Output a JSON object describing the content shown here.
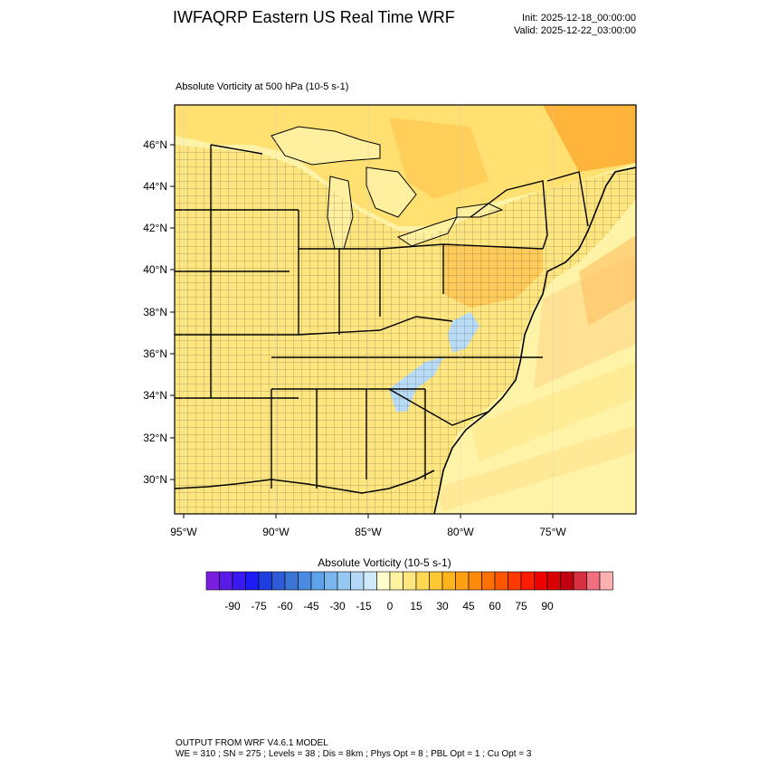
{
  "header": {
    "title": "IWFAQRP Eastern US Real Time WRF",
    "init": "Init: 2025-12-18_00:00:00",
    "valid": "Valid: 2025-12-22_03:00:00"
  },
  "plot": {
    "subtitle": "Absolute Vorticity at 500 hPa   (10-5 s-1)",
    "lat_labels": [
      "46°N",
      "44°N",
      "42°N",
      "40°N",
      "38°N",
      "36°N",
      "34°N",
      "32°N",
      "30°N"
    ],
    "lon_labels": [
      "95°W",
      "90°W",
      "85°W",
      "80°W",
      "75°W"
    ]
  },
  "colorbar": {
    "title": "Absolute Vorticity  (10-5 s-1)",
    "labels": [
      "-90",
      "-75",
      "-60",
      "-45",
      "-30",
      "-15",
      "0",
      "15",
      "30",
      "45",
      "60",
      "75",
      "90"
    ],
    "colors": [
      "#7a1fe0",
      "#5a1ae8",
      "#3a18f0",
      "#1c1cf6",
      "#1f3ee0",
      "#2f5bd8",
      "#3b76d6",
      "#4a8be0",
      "#5ea2ea",
      "#79b6ee",
      "#95c8f2",
      "#b3d9f6",
      "#d0e9fa",
      "#ffffcc",
      "#fff2a0",
      "#ffe680",
      "#ffd855",
      "#ffc832",
      "#ffb41e",
      "#ff9f14",
      "#ff8a0a",
      "#ff7000",
      "#ff5500",
      "#ff3a00",
      "#ff1e00",
      "#f00000",
      "#d80000",
      "#c00010",
      "#d83040",
      "#f07080",
      "#ffb0b0"
    ]
  },
  "footer": {
    "line1": "OUTPUT FROM WRF V4.6.1 MODEL",
    "line2": "WE = 310 ; SN = 275 ; Levels = 38 ; Dis = 8km ; Phys Opt = 8 ; PBL Opt = 1 ; Cu Opt = 3"
  }
}
